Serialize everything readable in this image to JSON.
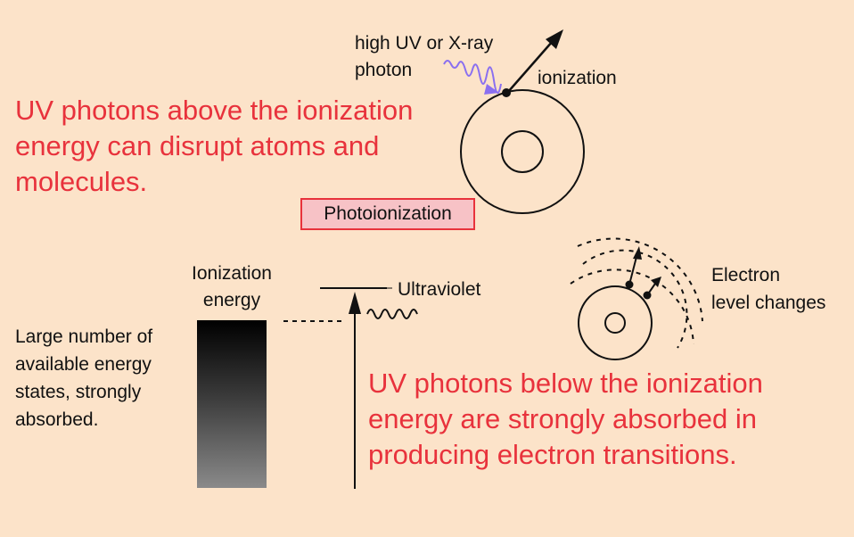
{
  "photoionization": {
    "main_text": "UV photons above the ionization\nenergy can disrupt atoms and\nmolecules.",
    "photon_label": "high UV or X-ray\nphoton",
    "ionization_label": "ionization",
    "badge": "Photoionization",
    "photon_color": "#8a6ff0"
  },
  "transitions": {
    "ionization_energy_label": "Ionization\nenergy",
    "states_text": "Large number of\navailable energy\nstates, strongly\nabsorbed.",
    "ultraviolet_label": "Ultraviolet",
    "electron_label": "Electron\nlevel changes",
    "main_text": "UV photons below the ionization\nenergy are strongly absorbed in\nproducing electron transitions."
  },
  "colors": {
    "background": "#fce3c9",
    "accent_red": "#e8323c",
    "badge_fill": "#f7c2c6"
  }
}
